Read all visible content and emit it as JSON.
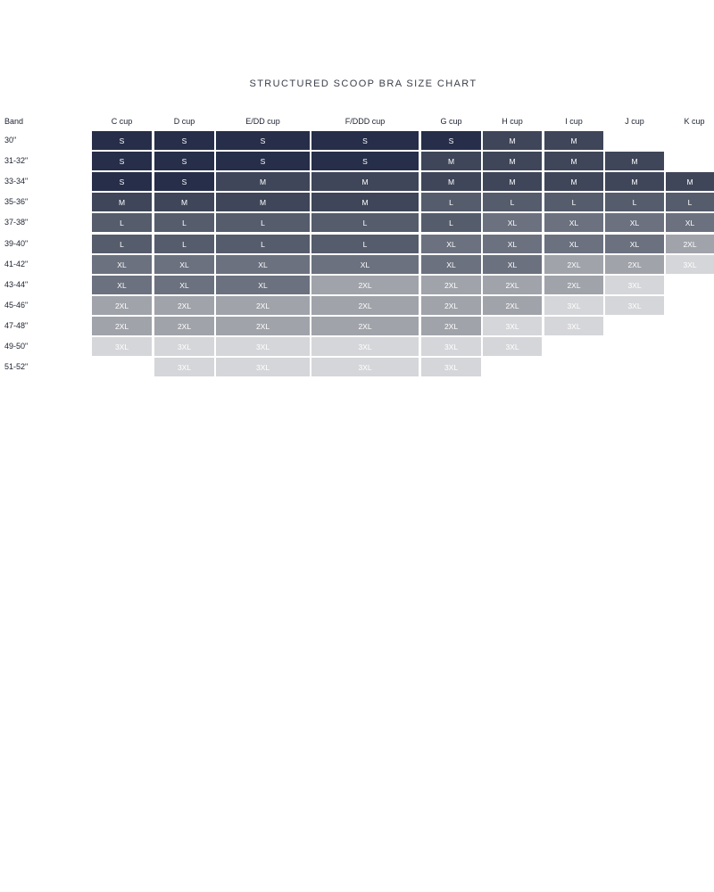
{
  "title": "STRUCTURED SCOOP BRA SIZE CHART",
  "band_header": "Band",
  "cups": [
    "C cup",
    "D cup",
    "E/DD cup",
    "F/DDD cup",
    "G cup",
    "H cup",
    "I cup",
    "J cup",
    "K cup"
  ],
  "rows": [
    {
      "band": "30\"",
      "sizes": [
        "S",
        "S",
        "S",
        "S",
        "S",
        "M",
        "M",
        "",
        ""
      ]
    },
    {
      "band": "31-32\"",
      "sizes": [
        "S",
        "S",
        "S",
        "S",
        "M",
        "M",
        "M",
        "M",
        ""
      ]
    },
    {
      "band": "33-34\"",
      "sizes": [
        "S",
        "S",
        "M",
        "M",
        "M",
        "M",
        "M",
        "M",
        "M"
      ]
    },
    {
      "band": "35-36\"",
      "sizes": [
        "M",
        "M",
        "M",
        "M",
        "L",
        "L",
        "L",
        "L",
        "L"
      ]
    },
    {
      "band": "37-38\"",
      "sizes": [
        "L",
        "L",
        "L",
        "L",
        "L",
        "XL",
        "XL",
        "XL",
        "XL"
      ]
    },
    {
      "band": "39-40\"",
      "sizes": [
        "L",
        "L",
        "L",
        "L",
        "XL",
        "XL",
        "XL",
        "XL",
        "2XL"
      ]
    },
    {
      "band": "41-42\"",
      "sizes": [
        "XL",
        "XL",
        "XL",
        "XL",
        "XL",
        "XL",
        "2XL",
        "2XL",
        "3XL"
      ]
    },
    {
      "band": "43-44\"",
      "sizes": [
        "XL",
        "XL",
        "XL",
        "2XL",
        "2XL",
        "2XL",
        "2XL",
        "3XL",
        ""
      ]
    },
    {
      "band": "45-46\"",
      "sizes": [
        "2XL",
        "2XL",
        "2XL",
        "2XL",
        "2XL",
        "2XL",
        "3XL",
        "3XL",
        ""
      ]
    },
    {
      "band": "47-48\"",
      "sizes": [
        "2XL",
        "2XL",
        "2XL",
        "2XL",
        "2XL",
        "3XL",
        "3XL",
        "",
        ""
      ]
    },
    {
      "band": "49-50\"",
      "sizes": [
        "3XL",
        "3XL",
        "3XL",
        "3XL",
        "3XL",
        "3XL",
        "",
        "",
        ""
      ]
    },
    {
      "band": "51-52\"",
      "sizes": [
        "",
        "3XL",
        "3XL",
        "3XL",
        "3XL",
        "",
        "",
        "",
        ""
      ]
    }
  ],
  "colors": {
    "S": "#262e49",
    "M": "#3f4659",
    "L": "#555c6c",
    "XL": "#6b717f",
    "2XL": "#a0a3aa",
    "3XL": "#d5d6d9"
  }
}
